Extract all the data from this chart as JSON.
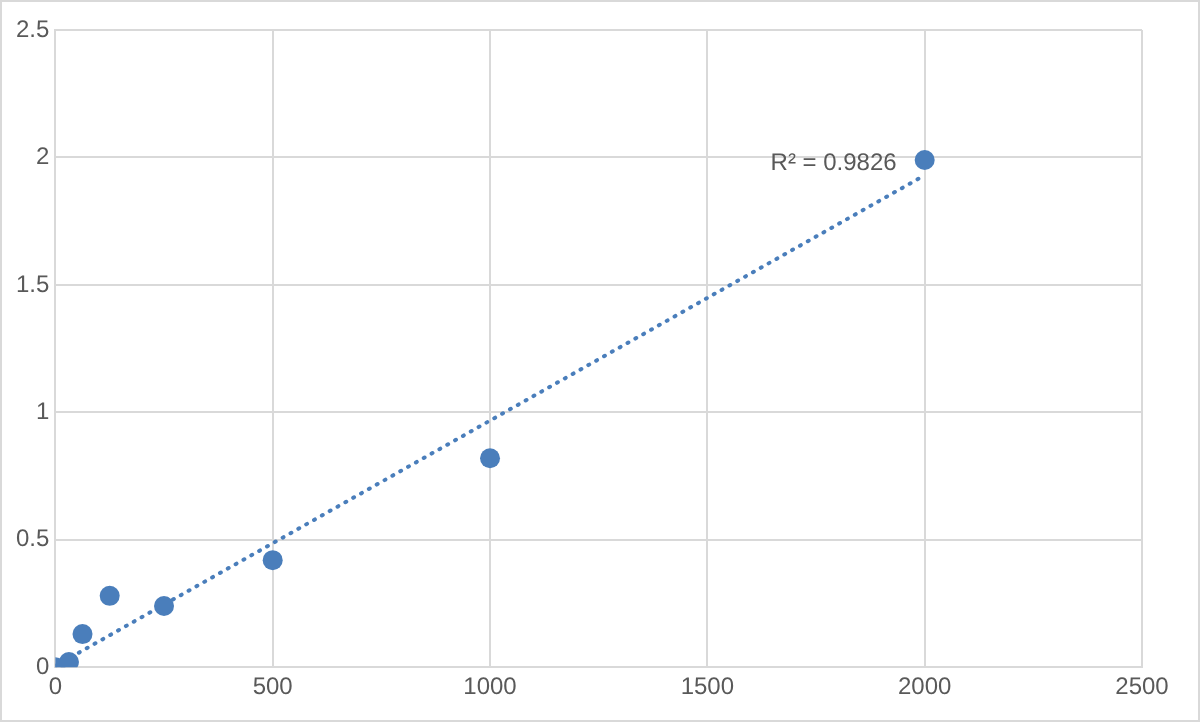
{
  "chart_data": {
    "type": "scatter",
    "series": [
      {
        "color": "#4a7ebb",
        "x": [
          0,
          31.25,
          62.5,
          125,
          250,
          500,
          1000,
          2000
        ],
        "values": [
          0,
          0.02,
          0.13,
          0.28,
          0.24,
          0.42,
          0.82,
          1.99
        ],
        "marker": "circle"
      },
      {
        "type": "line",
        "color": "#4a7ebb",
        "x": [
          0,
          2000
        ],
        "values": [
          0.005,
          1.93
        ],
        "marker": "none",
        "line_style": "dotted"
      }
    ],
    "xlim": [
      0,
      2500
    ],
    "xticks": [
      0,
      500,
      1000,
      1500,
      2000,
      2500
    ],
    "ylim": [
      0,
      2.5
    ],
    "yticks": [
      0,
      0.5,
      1,
      1.5,
      2,
      2.5
    ],
    "grid": true,
    "legend": false,
    "annotations": [
      "R² = 0.9826"
    ]
  }
}
